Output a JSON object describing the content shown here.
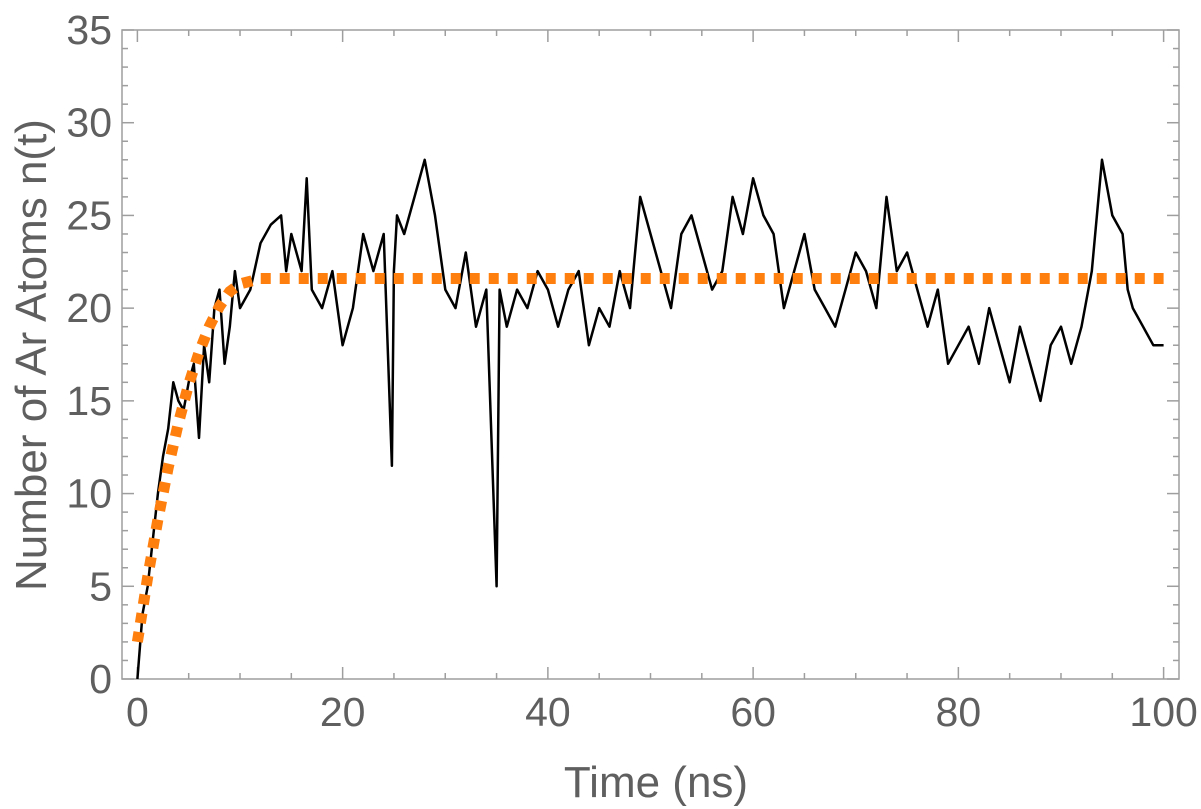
{
  "chart_data": {
    "type": "line",
    "title": "",
    "xlabel": "Time (ns)",
    "ylabel": "Number of Ar Atoms n(t)",
    "xlim": [
      -1.5,
      101.5
    ],
    "ylim": [
      0,
      35
    ],
    "xticks": [
      0,
      20,
      40,
      60,
      80,
      100
    ],
    "yticks": [
      0,
      5,
      10,
      15,
      20,
      25,
      30,
      35
    ],
    "x_tick_labels": [
      "0",
      "20",
      "40",
      "60",
      "80",
      "100"
    ],
    "y_tick_labels": [
      "0",
      "5",
      "10",
      "15",
      "20",
      "25",
      "30",
      "35"
    ],
    "grid": false,
    "legend": "none",
    "colors": {
      "simulation": "#000000",
      "fit": "#ff7f0e",
      "axis": "#9e9e9e",
      "text": "#5f5f5f"
    },
    "series": [
      {
        "style": "solid",
        "color": "#000000",
        "x": [
          0,
          0.5,
          1,
          1.5,
          2,
          2.5,
          3,
          3.5,
          4,
          4.5,
          5,
          5.5,
          6,
          6.5,
          7,
          7.5,
          8,
          8.5,
          9,
          9.5,
          10,
          11,
          12,
          13,
          14,
          14.5,
          15,
          16,
          16.5,
          17,
          18,
          19,
          20,
          21,
          22,
          23,
          24,
          24.8,
          25,
          25.3,
          26,
          27,
          28,
          29,
          30,
          31,
          32,
          33,
          34,
          35,
          35.3,
          36,
          37,
          38,
          39,
          40,
          41,
          42,
          43,
          44,
          45,
          46,
          47,
          48,
          49,
          50,
          51,
          52,
          53,
          54,
          55,
          56,
          57,
          58,
          59,
          60,
          61,
          62,
          63,
          64,
          65,
          66,
          67,
          68,
          69,
          70,
          71,
          72,
          73,
          74,
          75,
          76,
          77,
          78,
          79,
          80,
          81,
          82,
          83,
          84,
          85,
          86,
          87,
          88,
          89,
          90,
          91,
          92,
          93,
          94,
          95,
          96,
          96.5,
          97,
          98,
          99,
          100
        ],
        "y": [
          0,
          3.5,
          5,
          7.5,
          10,
          12,
          13.5,
          16,
          15,
          14.5,
          16,
          17,
          13,
          18,
          16,
          20,
          21,
          17,
          19,
          22,
          20,
          21,
          23.5,
          24.5,
          25,
          22,
          24,
          22,
          27,
          21,
          20,
          22,
          18,
          20,
          24,
          22,
          24,
          11.5,
          22,
          25,
          24,
          26,
          28,
          25,
          21,
          20,
          23,
          19,
          21,
          5,
          21,
          19,
          21,
          20,
          22,
          21,
          19,
          21,
          22,
          18,
          20,
          19,
          22,
          20,
          26,
          24,
          22,
          20,
          24,
          25,
          23,
          21,
          22,
          26,
          24,
          27,
          25,
          24,
          20,
          22,
          24,
          21,
          20,
          19,
          21,
          23,
          22,
          20,
          26,
          22,
          23,
          21,
          19,
          21,
          17,
          18,
          19,
          17,
          20,
          18,
          16,
          19,
          17,
          15,
          18,
          19,
          17,
          19,
          22,
          28,
          25,
          24,
          21,
          20,
          19,
          18,
          18
        ]
      },
      {
        "style": "dotted",
        "color": "#ff7f0e",
        "x": [
          0,
          1,
          2,
          3,
          4,
          5,
          6,
          7,
          8,
          9,
          10,
          12,
          15,
          20,
          30,
          40,
          50,
          60,
          70,
          80,
          90,
          100
        ],
        "y": [
          2,
          5.5,
          8.6,
          11.4,
          13.8,
          15.9,
          17.6,
          19,
          20.1,
          20.9,
          21.3,
          21.6,
          21.6,
          21.6,
          21.6,
          21.6,
          21.6,
          21.6,
          21.6,
          21.6,
          21.6,
          21.6
        ]
      }
    ]
  }
}
